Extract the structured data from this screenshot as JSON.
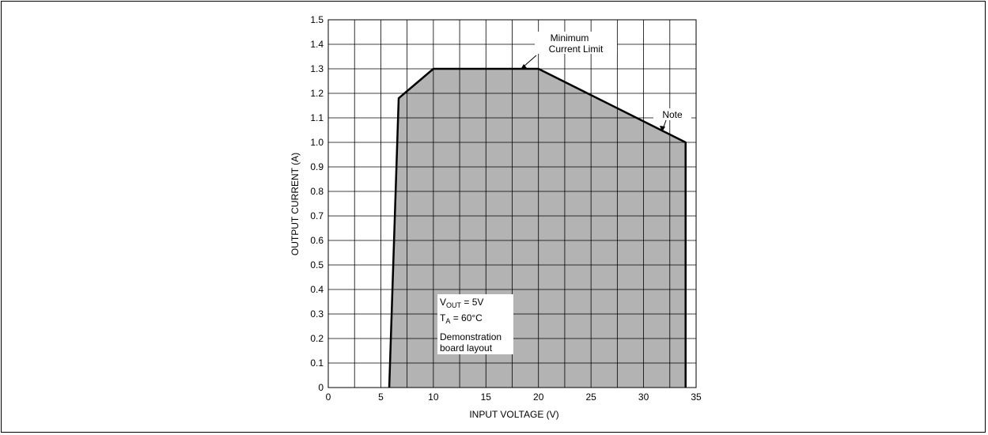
{
  "chart_data": {
    "type": "area",
    "title": "",
    "xlabel": "INPUT VOLTAGE (V)",
    "ylabel": "OUTPUT CURRENT (A)",
    "xlim": [
      0,
      35
    ],
    "ylim": [
      0,
      1.5
    ],
    "xticks": [
      "0",
      "5",
      "10",
      "15",
      "20",
      "25",
      "30",
      "35"
    ],
    "yticks": [
      "0",
      "0.1",
      "0.2",
      "0.3",
      "0.4",
      "0.5",
      "0.6",
      "0.7",
      "0.8",
      "0.9",
      "1.0",
      "1.1",
      "1.2",
      "1.3",
      "1.4",
      "1.5"
    ],
    "x_minor_step": 2.5,
    "grid": true,
    "fill_color": "#b3b3b3",
    "line_color": "#000000",
    "boundary": {
      "x": [
        5.8,
        6.7,
        10,
        20,
        34,
        34
      ],
      "y": [
        0,
        1.18,
        1.3,
        1.3,
        1.0,
        0
      ]
    },
    "annotations": {
      "min_current_line1": "Minimum",
      "min_current_line2": "Current Limit",
      "note": "Note",
      "conditions": {
        "vout_main": "V",
        "vout_sub": "OUT",
        "vout_value": " = 5V",
        "ta_main": "T",
        "ta_sub": "A",
        "ta_value": " = 60°C",
        "line3": "Demonstration",
        "line4": "board layout"
      }
    }
  }
}
